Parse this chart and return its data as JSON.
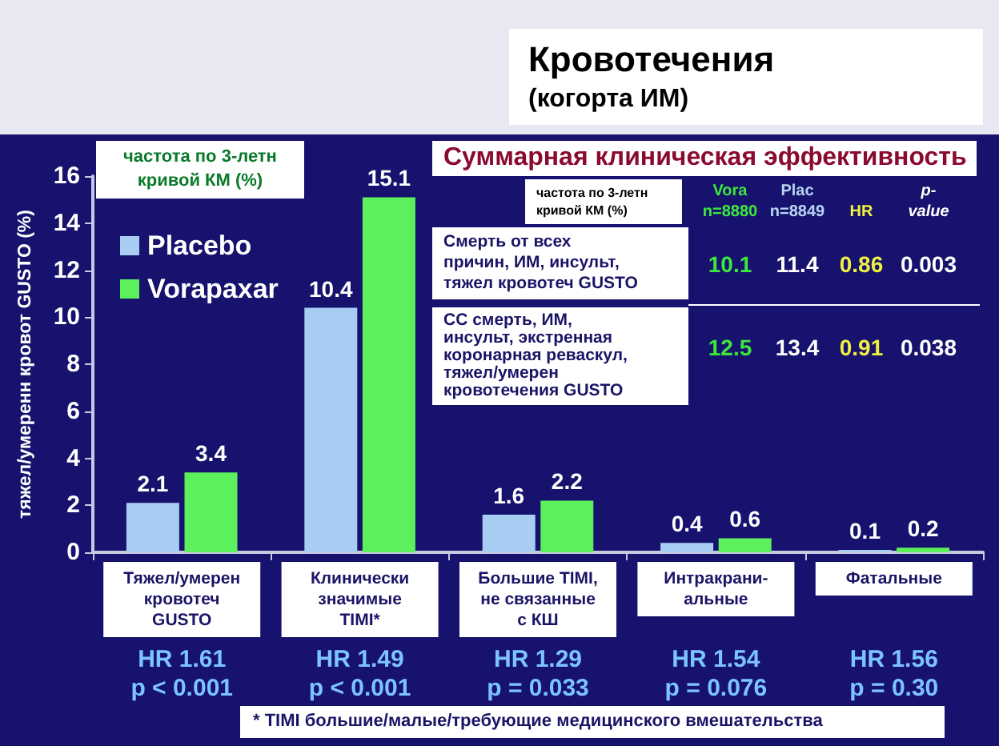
{
  "chart_data": {
    "type": "bar",
    "title": "Кровотечения",
    "subtitle": "(когорта ИМ)",
    "ylabel": "тяжел/умеренн кровот GUSTO (%)",
    "categories": [
      "Тяжел/умерен\nкровотеч\nGUSTO",
      "Клинически\nзначимые\nTIMI*",
      "Большие TIMI,\nне связанные\nс КШ",
      "Интракрани-\nальные",
      "Фатальные"
    ],
    "series": [
      {
        "name": "Placebo",
        "color": "#a8cdf3",
        "values": [
          2.1,
          10.4,
          1.6,
          0.4,
          0.1
        ]
      },
      {
        "name": "Vorapaxar",
        "color": "#5cf05c",
        "values": [
          3.4,
          15.1,
          2.2,
          0.6,
          0.2
        ]
      }
    ],
    "ylim": [
      0,
      16
    ],
    "yticks": [
      0,
      2,
      4,
      6,
      8,
      10,
      12,
      14,
      16
    ],
    "grid": false,
    "legend": "top left",
    "data_labels": true,
    "annotations": [
      "частота по 3-летн\nкривой КМ (%)",
      "* TIMI большие/малые/требующие медицинского вмешательства",
      "Суммарная клиническая эффективность",
      "частота по 3-летн\nкривой КМ (%)",
      "Vora\nn=8880",
      "Plac\nn=8849",
      "HR",
      "p-\nvalue",
      "Смерть от всех\nпричин, ИМ, инсульт,\nтяжел кровотеч GUSTO",
      "10.1",
      "11.4",
      "0.86",
      "0.003",
      "СС смерть, ИМ,\nинсульт, экстренная\nкоронарная реваскул,\nтяжел/умерен\nкровотечения GUSTO",
      "12.5",
      "13.4",
      "0.91",
      "0.038",
      "HR 1.61\np < 0.001",
      "HR 1.49\np < 0.001",
      "HR 1.29\np = 0.033",
      "HR 1.54\np = 0.076",
      "HR 1.56\np = 0.30"
    ]
  }
}
